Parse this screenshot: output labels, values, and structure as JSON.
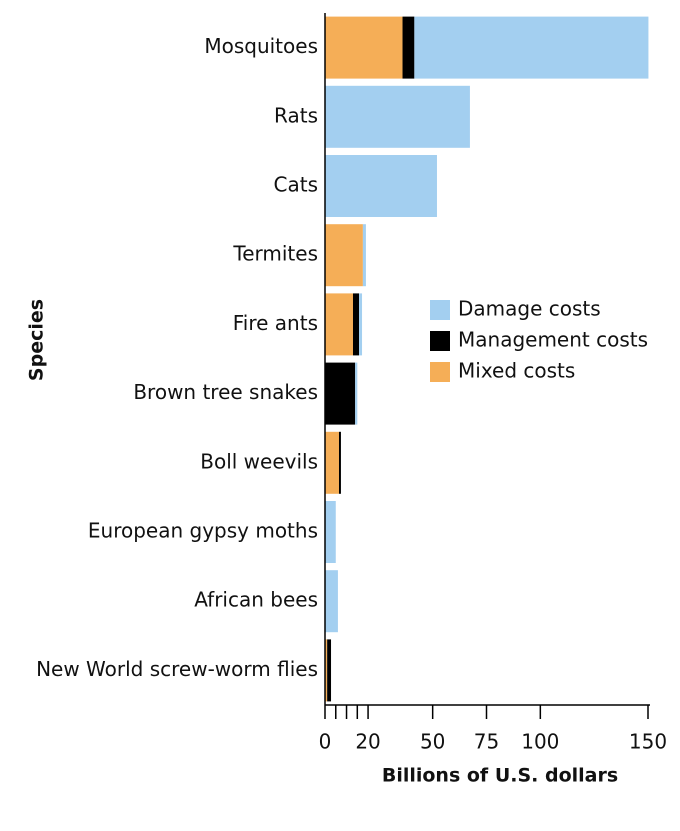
{
  "chart_data": {
    "type": "stacked-barh",
    "x_label": "Billions of U.S. dollars",
    "y_label": "Species",
    "categories": [
      "Mosquitoes",
      "Rats",
      "Cats",
      "Termites",
      "Fire ants",
      "Brown tree snakes",
      "Boll weevils",
      "European gypsy moths",
      "African bees",
      "New World screw-worm flies"
    ],
    "series": [
      {
        "name": "Mixed costs",
        "color": "#f5ae57",
        "values": [
          36,
          0,
          0,
          17.6,
          13,
          0,
          6.5,
          0,
          0,
          1
        ]
      },
      {
        "name": "Management costs",
        "color": "#000000",
        "values": [
          5.5,
          0,
          0,
          0,
          2.8,
          14,
          0.9,
          0,
          0,
          1.8
        ]
      },
      {
        "name": "Damage costs",
        "color": "#a3cff0",
        "values": [
          108.7,
          67.3,
          52,
          1.4,
          1.4,
          1,
          0,
          5,
          6,
          0
        ]
      }
    ],
    "legend_order": [
      2,
      1,
      0
    ],
    "xlim": [
      0,
      150
    ],
    "xticks": [
      0,
      20,
      50,
      75,
      100,
      150
    ],
    "minor_xticks": [
      5,
      10,
      15
    ]
  }
}
